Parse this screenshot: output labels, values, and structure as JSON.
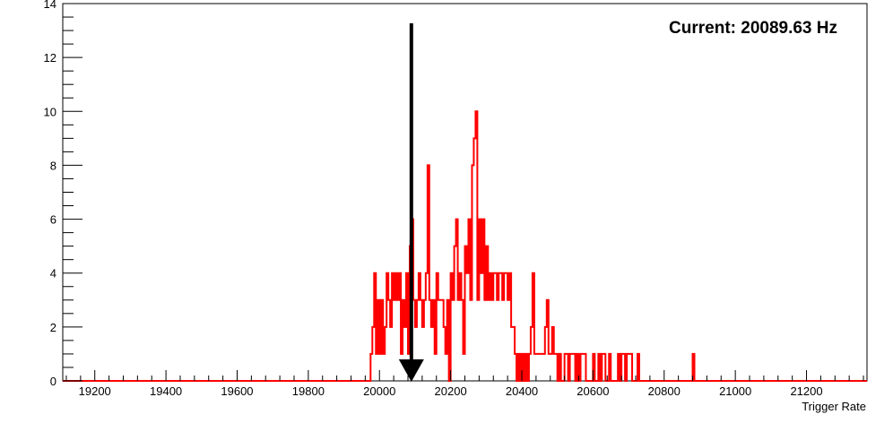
{
  "chart_data": {
    "type": "histogram",
    "title": "",
    "xlabel": "Trigger Rate",
    "ylabel": "",
    "xlim": [
      19110,
      21370
    ],
    "ylim": [
      0,
      14
    ],
    "x_ticks": [
      19200,
      19400,
      19600,
      19800,
      20000,
      20200,
      20400,
      20600,
      20800,
      21000,
      21200
    ],
    "y_ticks": [
      0,
      2,
      4,
      6,
      8,
      10,
      12,
      14
    ],
    "grid": false,
    "series": [
      {
        "color": "#ff0000",
        "bin_width": 5,
        "bin_edges_start": 19110,
        "bins": [
          [
            19975,
            1
          ],
          [
            19980,
            2
          ],
          [
            19985,
            4
          ],
          [
            19990,
            1
          ],
          [
            19995,
            3
          ],
          [
            20000,
            1
          ],
          [
            20005,
            3
          ],
          [
            20010,
            1
          ],
          [
            20015,
            2
          ],
          [
            20020,
            4
          ],
          [
            20025,
            3
          ],
          [
            20030,
            2
          ],
          [
            20035,
            4
          ],
          [
            20040,
            3
          ],
          [
            20045,
            4
          ],
          [
            20050,
            3
          ],
          [
            20055,
            4
          ],
          [
            20060,
            1
          ],
          [
            20065,
            3
          ],
          [
            20070,
            2
          ],
          [
            20075,
            4
          ],
          [
            20080,
            1
          ],
          [
            20085,
            5
          ],
          [
            20090,
            6
          ],
          [
            20095,
            3
          ],
          [
            20100,
            2
          ],
          [
            20105,
            3
          ],
          [
            20110,
            4
          ],
          [
            20115,
            3
          ],
          [
            20120,
            2
          ],
          [
            20125,
            3
          ],
          [
            20130,
            4
          ],
          [
            20135,
            8
          ],
          [
            20140,
            3
          ],
          [
            20145,
            2
          ],
          [
            20150,
            3
          ],
          [
            20155,
            1
          ],
          [
            20160,
            4
          ],
          [
            20165,
            3
          ],
          [
            20170,
            3
          ],
          [
            20175,
            3
          ],
          [
            20180,
            2
          ],
          [
            20185,
            1
          ],
          [
            20190,
            3
          ],
          [
            20195,
            0
          ],
          [
            20200,
            4
          ],
          [
            20205,
            3
          ],
          [
            20210,
            5
          ],
          [
            20215,
            6
          ],
          [
            20220,
            3
          ],
          [
            20225,
            4
          ],
          [
            20230,
            3
          ],
          [
            20235,
            1
          ],
          [
            20240,
            5
          ],
          [
            20245,
            4
          ],
          [
            20250,
            6
          ],
          [
            20255,
            3
          ],
          [
            20260,
            8
          ],
          [
            20265,
            9
          ],
          [
            20270,
            10
          ],
          [
            20275,
            3
          ],
          [
            20280,
            6
          ],
          [
            20285,
            4
          ],
          [
            20290,
            6
          ],
          [
            20295,
            3
          ],
          [
            20300,
            5
          ],
          [
            20305,
            3
          ],
          [
            20310,
            4
          ],
          [
            20315,
            3
          ],
          [
            20320,
            4
          ],
          [
            20325,
            4
          ],
          [
            20330,
            3
          ],
          [
            20335,
            4
          ],
          [
            20340,
            4
          ],
          [
            20345,
            3
          ],
          [
            20350,
            4
          ],
          [
            20355,
            4
          ],
          [
            20360,
            3
          ],
          [
            20365,
            4
          ],
          [
            20370,
            2
          ],
          [
            20375,
            2
          ],
          [
            20380,
            1
          ],
          [
            20385,
            0
          ],
          [
            20390,
            1
          ],
          [
            20395,
            0
          ],
          [
            20400,
            1
          ],
          [
            20405,
            0
          ],
          [
            20410,
            1
          ],
          [
            20415,
            0
          ],
          [
            20420,
            1
          ],
          [
            20425,
            2
          ],
          [
            20430,
            4
          ],
          [
            20435,
            1
          ],
          [
            20440,
            1
          ],
          [
            20445,
            1
          ],
          [
            20450,
            1
          ],
          [
            20455,
            1
          ],
          [
            20460,
            1
          ],
          [
            20465,
            2
          ],
          [
            20470,
            3
          ],
          [
            20475,
            1
          ],
          [
            20480,
            1
          ],
          [
            20485,
            2
          ],
          [
            20490,
            1
          ],
          [
            20495,
            1
          ],
          [
            20500,
            0
          ],
          [
            20505,
            1
          ],
          [
            20510,
            0
          ],
          [
            20515,
            0
          ],
          [
            20520,
            1
          ],
          [
            20525,
            1
          ],
          [
            20530,
            0
          ],
          [
            20535,
            1
          ],
          [
            20540,
            1
          ],
          [
            20545,
            1
          ],
          [
            20550,
            0
          ],
          [
            20555,
            1
          ],
          [
            20560,
            0
          ],
          [
            20565,
            1
          ],
          [
            20570,
            1
          ],
          [
            20575,
            1
          ],
          [
            20580,
            0
          ],
          [
            20585,
            0
          ],
          [
            20590,
            0
          ],
          [
            20595,
            0
          ],
          [
            20600,
            1
          ],
          [
            20605,
            0
          ],
          [
            20610,
            0
          ],
          [
            20615,
            1
          ],
          [
            20620,
            0
          ],
          [
            20625,
            1
          ],
          [
            20630,
            1
          ],
          [
            20635,
            0
          ],
          [
            20640,
            0
          ],
          [
            20645,
            1
          ],
          [
            20650,
            0
          ],
          [
            20655,
            0
          ],
          [
            20660,
            0
          ],
          [
            20665,
            0
          ],
          [
            20670,
            1
          ],
          [
            20675,
            0
          ],
          [
            20680,
            1
          ],
          [
            20685,
            1
          ],
          [
            20690,
            0
          ],
          [
            20695,
            1
          ],
          [
            20700,
            1
          ],
          [
            20705,
            1
          ],
          [
            20710,
            0
          ],
          [
            20715,
            0
          ],
          [
            20720,
            0
          ],
          [
            20725,
            1
          ],
          [
            20880,
            1
          ]
        ]
      }
    ],
    "marker": {
      "value": 20089.63,
      "label": "Current: 20089.63 Hz"
    }
  }
}
